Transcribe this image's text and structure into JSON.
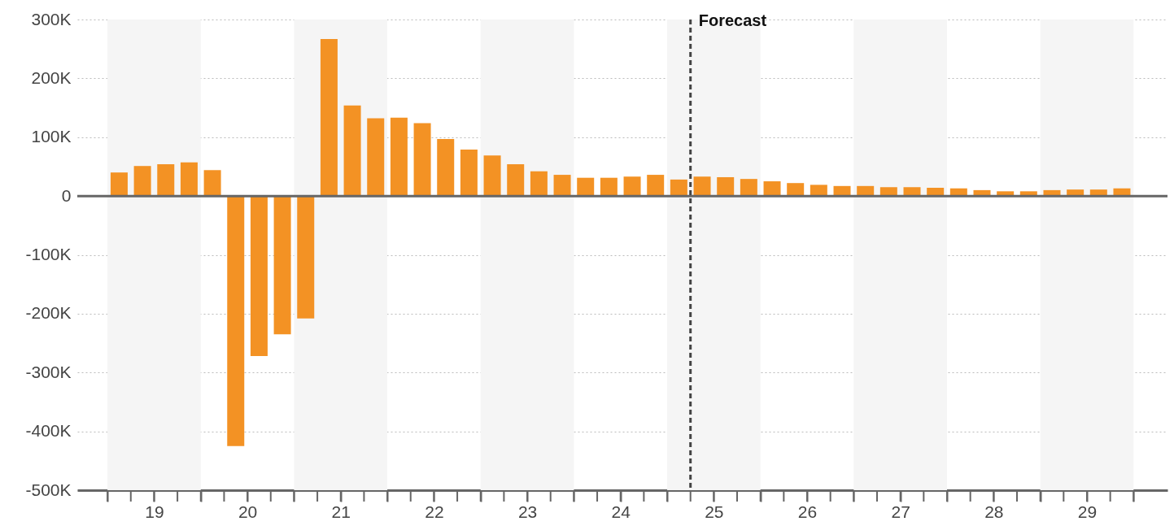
{
  "chart_data": {
    "type": "bar",
    "x": [
      18.625,
      18.875,
      19.125,
      19.375,
      19.625,
      19.875,
      20.125,
      20.375,
      20.625,
      20.875,
      21.125,
      21.375,
      21.625,
      21.875,
      22.125,
      22.375,
      22.625,
      22.875,
      23.125,
      23.375,
      23.625,
      23.875,
      24.125,
      24.375,
      24.625,
      24.875,
      25.125,
      25.375,
      25.625,
      25.875,
      26.125,
      26.375,
      26.625,
      26.875,
      27.125,
      27.375,
      27.625,
      27.875,
      28.125,
      28.375,
      28.625,
      28.875,
      29.125,
      29.375
    ],
    "values": [
      40000,
      51000,
      54000,
      57000,
      44000,
      -425000,
      -272000,
      -235000,
      -208000,
      267000,
      154000,
      132000,
      133000,
      124000,
      97000,
      79000,
      69000,
      54000,
      42000,
      36000,
      31000,
      31000,
      33000,
      36000,
      28000,
      33000,
      32000,
      29000,
      25000,
      22000,
      19000,
      17000,
      17000,
      15000,
      15000,
      14000,
      13000,
      10000,
      8000,
      8000,
      10000,
      11000,
      11000,
      13000
    ],
    "color": "#f39224",
    "xlim": [
      18.22,
      29.82
    ],
    "xticks": [
      {
        "value": 18.5,
        "label": null
      },
      {
        "value": 18.75,
        "label": null
      },
      19,
      {
        "value": 19.25,
        "label": null
      },
      {
        "value": 19.5,
        "label": null
      },
      {
        "value": 19.75,
        "label": null
      },
      20,
      {
        "value": 20.25,
        "label": null
      },
      {
        "value": 20.5,
        "label": null
      },
      {
        "value": 20.75,
        "label": null
      },
      21,
      {
        "value": 21.25,
        "label": null
      },
      {
        "value": 21.5,
        "label": null
      },
      {
        "value": 21.75,
        "label": null
      },
      22,
      {
        "value": 22.25,
        "label": null
      },
      {
        "value": 22.5,
        "label": null
      },
      {
        "value": 22.75,
        "label": null
      },
      23,
      {
        "value": 23.25,
        "label": null
      },
      {
        "value": 23.5,
        "label": null
      },
      {
        "value": 23.75,
        "label": null
      },
      24,
      {
        "value": 24.25,
        "label": null
      },
      {
        "value": 24.5,
        "label": null
      },
      {
        "value": 24.75,
        "label": null
      },
      25,
      {
        "value": 25.25,
        "label": null
      },
      {
        "value": 25.5,
        "label": null
      },
      {
        "value": 25.75,
        "label": null
      },
      26,
      {
        "value": 26.25,
        "label": null
      },
      {
        "value": 26.5,
        "label": null
      },
      {
        "value": 26.75,
        "label": null
      },
      27,
      {
        "value": 27.25,
        "label": null
      },
      {
        "value": 27.5,
        "label": null
      },
      {
        "value": 27.75,
        "label": null
      },
      28,
      {
        "value": 28.25,
        "label": null
      },
      {
        "value": 28.5,
        "label": null
      },
      {
        "value": 28.75,
        "label": null
      },
      29,
      {
        "value": 29.25,
        "label": null
      },
      {
        "value": 29.5,
        "label": null
      }
    ],
    "ylim": [
      -500000,
      300000
    ],
    "yticks": [
      {
        "value": -500000,
        "label": "-500K"
      },
      {
        "value": -400000,
        "label": "-400K"
      },
      {
        "value": -300000,
        "label": "-300K"
      },
      {
        "value": -200000,
        "label": "-200K"
      },
      {
        "value": -100000,
        "label": "-100K"
      },
      {
        "value": 0,
        "label": "0"
      },
      {
        "value": 100000,
        "label": "100K"
      },
      {
        "value": 200000,
        "label": "200K"
      },
      {
        "value": 300000,
        "label": "300K"
      }
    ],
    "grid": "y",
    "bands": [
      {
        "axis": "x",
        "from": 18.5,
        "to": 19.5,
        "color": "#f5f5f5"
      },
      {
        "axis": "x",
        "from": 20.5,
        "to": 21.5,
        "color": "#f5f5f5"
      },
      {
        "axis": "x",
        "from": 22.5,
        "to": 23.5,
        "color": "#f5f5f5"
      },
      {
        "axis": "x",
        "from": 24.5,
        "to": 25.5,
        "color": "#f5f5f5"
      },
      {
        "axis": "x",
        "from": 26.5,
        "to": 27.5,
        "color": "#f5f5f5"
      },
      {
        "axis": "x",
        "from": 28.5,
        "to": 29.5,
        "color": "#f5f5f5"
      }
    ],
    "ref_lines": [
      {
        "axis": "y",
        "value": 0,
        "color": "#666666"
      },
      {
        "axis": "x",
        "value": 24.75,
        "label": "Forecast",
        "line_style": "dashed",
        "color": "#444444"
      }
    ]
  }
}
